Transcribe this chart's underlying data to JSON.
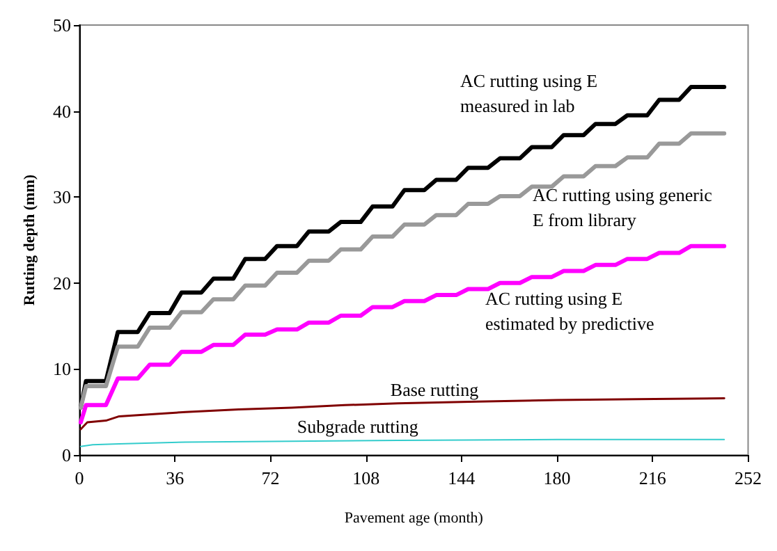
{
  "chart_data": {
    "type": "line",
    "xlabel": "Pavement age (month)",
    "ylabel": "Rutting depth (mm)",
    "xlim": [
      0,
      252
    ],
    "xticks": [
      0,
      36,
      72,
      108,
      144,
      180,
      216,
      252
    ],
    "ylim": [
      0,
      50
    ],
    "yticks": [
      0,
      10,
      20,
      30,
      40,
      50
    ],
    "grid": false,
    "legend": false,
    "marker": "none",
    "line_style": "solid",
    "series": [
      {
        "name": "AC rutting using E\nmeasured in lab",
        "color": "#000000",
        "x": [
          0.5,
          2.5,
          10,
          14.5,
          22,
          26.5,
          34,
          38.5,
          46,
          50.5,
          58,
          62.5,
          70,
          74.5,
          82,
          86.5,
          94,
          98.5,
          106,
          110.5,
          118,
          122.5,
          130,
          134.5,
          142,
          146.5,
          154,
          158.5,
          166,
          170.5,
          178,
          182.5,
          190,
          194.5,
          202,
          206.5,
          214,
          218.5,
          226,
          230.5,
          243
        ],
        "values": [
          5.5,
          8.6,
          8.6,
          14.3,
          14.3,
          16.5,
          16.5,
          18.9,
          18.9,
          20.5,
          20.5,
          22.8,
          22.8,
          24.3,
          24.3,
          26,
          26,
          27.1,
          27.1,
          28.9,
          28.9,
          30.8,
          30.8,
          32,
          32,
          33.4,
          33.4,
          34.5,
          34.5,
          35.8,
          35.8,
          37.2,
          37.2,
          38.5,
          38.5,
          39.5,
          39.5,
          41.3,
          41.3,
          42.8,
          42.8
        ]
      },
      {
        "name": "AC rutting using generic\nE from library",
        "color": "#999999",
        "x": [
          0.5,
          2.5,
          10,
          14.5,
          22,
          26.5,
          34,
          38.5,
          46,
          50.5,
          58,
          62.5,
          70,
          74.5,
          82,
          86.5,
          94,
          98.5,
          106,
          110.5,
          118,
          122.5,
          130,
          134.5,
          142,
          146.5,
          154,
          158.5,
          166,
          170.5,
          178,
          182.5,
          190,
          194.5,
          202,
          206.5,
          214,
          218.5,
          226,
          230.5,
          243
        ],
        "values": [
          5.5,
          8.0,
          8.0,
          12.6,
          12.6,
          14.8,
          14.8,
          16.6,
          16.6,
          18.1,
          18.1,
          19.7,
          19.7,
          21.2,
          21.2,
          22.6,
          22.6,
          23.9,
          23.9,
          25.4,
          25.4,
          26.8,
          26.8,
          27.9,
          27.9,
          29.2,
          29.2,
          30.1,
          30.1,
          31.2,
          31.2,
          32.4,
          32.4,
          33.6,
          33.6,
          34.6,
          34.6,
          36.2,
          36.2,
          37.4,
          37.4
        ]
      },
      {
        "name": "AC rutting using E\nestimated by predictive",
        "color": "#ff00ff",
        "x": [
          0.5,
          2.5,
          10,
          14.5,
          22,
          26.5,
          34,
          38.5,
          46,
          50.5,
          58,
          62.5,
          70,
          74.5,
          82,
          86.5,
          94,
          98.5,
          106,
          110.5,
          118,
          122.5,
          130,
          134.5,
          142,
          146.5,
          154,
          158.5,
          166,
          170.5,
          178,
          182.5,
          190,
          194.5,
          202,
          206.5,
          214,
          218.5,
          226,
          230.5,
          243
        ],
        "values": [
          3.8,
          5.8,
          5.8,
          8.9,
          8.9,
          10.5,
          10.5,
          12.0,
          12.0,
          12.8,
          12.8,
          14.0,
          14.0,
          14.6,
          14.6,
          15.4,
          15.4,
          16.2,
          16.2,
          17.2,
          17.2,
          17.9,
          17.9,
          18.6,
          18.6,
          19.3,
          19.3,
          20.0,
          20.0,
          20.7,
          20.7,
          21.4,
          21.4,
          22.1,
          22.1,
          22.8,
          22.8,
          23.5,
          23.5,
          24.3,
          24.3
        ]
      },
      {
        "name": "Base rutting",
        "color": "#800000",
        "x": [
          0.5,
          3,
          10,
          15,
          30,
          40,
          60,
          80,
          100,
          120,
          150,
          180,
          210,
          243
        ],
        "values": [
          3.0,
          3.8,
          4.0,
          4.5,
          4.8,
          5.0,
          5.3,
          5.5,
          5.8,
          6.0,
          6.2,
          6.4,
          6.5,
          6.6
        ]
      },
      {
        "name": "Subgrade rutting",
        "color": "#33cccc",
        "x": [
          0.5,
          5,
          15,
          40,
          80,
          120,
          180,
          243
        ],
        "values": [
          1.0,
          1.2,
          1.3,
          1.5,
          1.6,
          1.7,
          1.8,
          1.8
        ]
      }
    ]
  }
}
